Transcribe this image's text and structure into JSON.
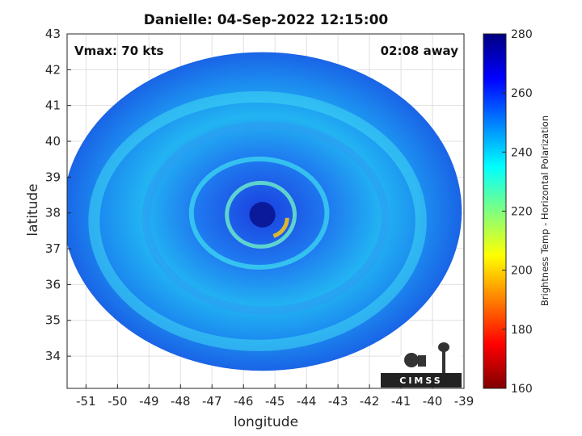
{
  "chart_data": {
    "type": "heatmap",
    "title": "Danielle: 04-Sep-2022 12:15:00",
    "xlabel": "longitude",
    "ylabel": "latitude",
    "xlim": [
      -51.6,
      -39
    ],
    "ylim": [
      33.1,
      43
    ],
    "xticks": [
      -51,
      -50,
      -49,
      -48,
      -47,
      -46,
      -45,
      -44,
      -43,
      -42,
      -41,
      -40,
      -39
    ],
    "yticks": [
      34,
      35,
      36,
      37,
      38,
      39,
      40,
      41,
      42,
      43
    ],
    "grid": true,
    "storm_center": {
      "lon": -45.4,
      "lat": 37.95
    },
    "swath_radius_deg_lat": 4.45,
    "annotations": {
      "vmax": "Vmax: 70 kts",
      "time_offset": "02:08 away"
    },
    "colorbar": {
      "label": "Brightness Temp - Horizontal Polarization",
      "range": [
        160,
        280
      ],
      "ticks": [
        160,
        180,
        200,
        220,
        240,
        260,
        280
      ],
      "colormap": "jet"
    },
    "logo": "CIMSS"
  }
}
